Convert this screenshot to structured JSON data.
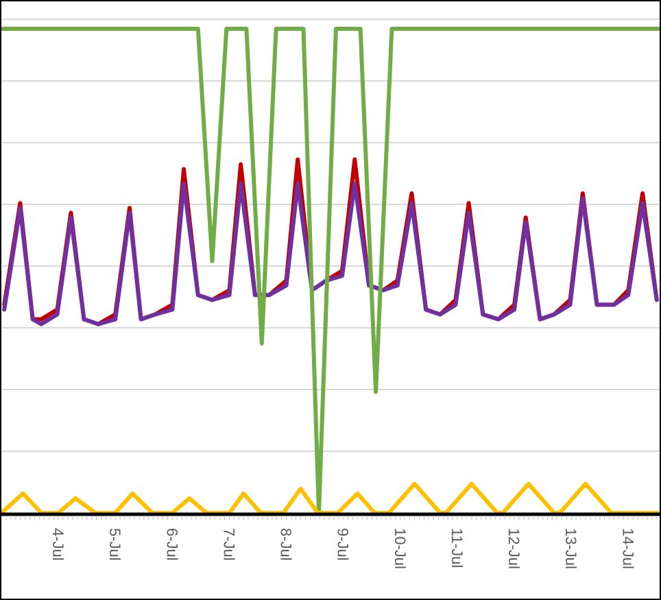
{
  "chart_data": {
    "type": "line",
    "title": "",
    "xlabel": "",
    "ylabel": "",
    "x_range_days": [
      3.0,
      14.55
    ],
    "x_ticks": [
      {
        "day": 4,
        "label": "4-Jul"
      },
      {
        "day": 5,
        "label": "5-Jul"
      },
      {
        "day": 6,
        "label": "6-Jul"
      },
      {
        "day": 7,
        "label": "7-Jul"
      },
      {
        "day": 8,
        "label": "8-Jul"
      },
      {
        "day": 9,
        "label": "9-Jul"
      },
      {
        "day": 10,
        "label": "10-Jul"
      },
      {
        "day": 11,
        "label": "11-Jul"
      },
      {
        "day": 12,
        "label": "12-Jul"
      },
      {
        "day": 13,
        "label": "13-Jul"
      },
      {
        "day": 14,
        "label": "14-Jul"
      }
    ],
    "grid": true,
    "y_axis_labels_visible": false,
    "legend": "none",
    "series": [
      {
        "color": "#c00000",
        "points": [
          [
            3.05,
            0.43
          ],
          [
            3.33,
            0.64
          ],
          [
            3.55,
            0.4
          ],
          [
            3.7,
            0.4
          ],
          [
            3.98,
            0.42
          ],
          [
            4.22,
            0.62
          ],
          [
            4.45,
            0.4
          ],
          [
            4.7,
            0.39
          ],
          [
            5.0,
            0.41
          ],
          [
            5.25,
            0.63
          ],
          [
            5.45,
            0.4
          ],
          [
            5.7,
            0.41
          ],
          [
            6.0,
            0.43
          ],
          [
            6.2,
            0.71
          ],
          [
            6.45,
            0.45
          ],
          [
            6.7,
            0.44
          ],
          [
            7.0,
            0.46
          ],
          [
            7.2,
            0.72
          ],
          [
            7.45,
            0.45
          ],
          [
            7.7,
            0.45
          ],
          [
            8.0,
            0.48
          ],
          [
            8.2,
            0.73
          ],
          [
            8.45,
            0.46
          ],
          [
            8.7,
            0.48
          ],
          [
            8.98,
            0.5
          ],
          [
            9.2,
            0.73
          ],
          [
            9.45,
            0.47
          ],
          [
            9.7,
            0.46
          ],
          [
            9.95,
            0.48
          ],
          [
            10.2,
            0.66
          ],
          [
            10.45,
            0.42
          ],
          [
            10.7,
            0.41
          ],
          [
            10.97,
            0.44
          ],
          [
            11.2,
            0.64
          ],
          [
            11.45,
            0.41
          ],
          [
            11.72,
            0.4
          ],
          [
            12.0,
            0.43
          ],
          [
            12.2,
            0.61
          ],
          [
            12.45,
            0.4
          ],
          [
            12.7,
            0.41
          ],
          [
            12.98,
            0.44
          ],
          [
            13.2,
            0.66
          ],
          [
            13.45,
            0.43
          ],
          [
            13.75,
            0.43
          ],
          [
            14.0,
            0.46
          ],
          [
            14.25,
            0.66
          ],
          [
            14.5,
            0.44
          ]
        ]
      },
      {
        "color": "#7030a0",
        "points": [
          [
            3.05,
            0.42
          ],
          [
            3.33,
            0.63
          ],
          [
            3.55,
            0.4
          ],
          [
            3.7,
            0.39
          ],
          [
            3.98,
            0.41
          ],
          [
            4.22,
            0.61
          ],
          [
            4.45,
            0.4
          ],
          [
            4.7,
            0.39
          ],
          [
            5.0,
            0.4
          ],
          [
            5.25,
            0.62
          ],
          [
            5.45,
            0.4
          ],
          [
            5.7,
            0.41
          ],
          [
            6.0,
            0.42
          ],
          [
            6.2,
            0.68
          ],
          [
            6.45,
            0.45
          ],
          [
            6.7,
            0.44
          ],
          [
            7.0,
            0.45
          ],
          [
            7.2,
            0.68
          ],
          [
            7.45,
            0.45
          ],
          [
            7.7,
            0.45
          ],
          [
            8.0,
            0.47
          ],
          [
            8.2,
            0.68
          ],
          [
            8.45,
            0.46
          ],
          [
            8.7,
            0.48
          ],
          [
            8.98,
            0.49
          ],
          [
            9.2,
            0.68
          ],
          [
            9.45,
            0.47
          ],
          [
            9.7,
            0.46
          ],
          [
            9.95,
            0.47
          ],
          [
            10.2,
            0.64
          ],
          [
            10.45,
            0.42
          ],
          [
            10.7,
            0.41
          ],
          [
            10.97,
            0.43
          ],
          [
            11.2,
            0.62
          ],
          [
            11.45,
            0.41
          ],
          [
            11.72,
            0.4
          ],
          [
            12.0,
            0.42
          ],
          [
            12.2,
            0.6
          ],
          [
            12.45,
            0.4
          ],
          [
            12.7,
            0.41
          ],
          [
            12.98,
            0.43
          ],
          [
            13.2,
            0.65
          ],
          [
            13.45,
            0.43
          ],
          [
            13.75,
            0.43
          ],
          [
            14.0,
            0.45
          ],
          [
            14.25,
            0.64
          ],
          [
            14.5,
            0.44
          ]
        ]
      },
      {
        "color": "#70ad47",
        "points": [
          [
            3.0,
            1.0
          ],
          [
            6.45,
            1.0
          ],
          [
            6.7,
            0.52
          ],
          [
            6.95,
            1.0
          ],
          [
            7.3,
            1.0
          ],
          [
            7.57,
            0.35
          ],
          [
            7.82,
            1.0
          ],
          [
            8.3,
            1.0
          ],
          [
            8.57,
            0.0
          ],
          [
            8.87,
            1.0
          ],
          [
            9.3,
            1.0
          ],
          [
            9.57,
            0.25
          ],
          [
            9.85,
            1.0
          ],
          [
            14.55,
            1.0
          ]
        ]
      },
      {
        "color": "#ffc000",
        "points": [
          [
            3.0,
            0.0
          ],
          [
            3.38,
            0.04
          ],
          [
            3.7,
            0.0
          ],
          [
            4.0,
            0.0
          ],
          [
            4.3,
            0.03
          ],
          [
            4.65,
            0.0
          ],
          [
            5.0,
            0.0
          ],
          [
            5.3,
            0.04
          ],
          [
            5.65,
            0.0
          ],
          [
            6.0,
            0.0
          ],
          [
            6.3,
            0.03
          ],
          [
            6.6,
            0.0
          ],
          [
            7.0,
            0.0
          ],
          [
            7.25,
            0.04
          ],
          [
            7.55,
            0.0
          ],
          [
            7.95,
            0.0
          ],
          [
            8.25,
            0.05
          ],
          [
            8.55,
            0.0
          ],
          [
            8.9,
            0.0
          ],
          [
            9.25,
            0.04
          ],
          [
            9.55,
            0.0
          ],
          [
            9.8,
            0.0
          ],
          [
            10.25,
            0.06
          ],
          [
            10.7,
            0.0
          ],
          [
            10.8,
            0.0
          ],
          [
            11.25,
            0.06
          ],
          [
            11.7,
            0.0
          ],
          [
            11.8,
            0.0
          ],
          [
            12.25,
            0.06
          ],
          [
            12.7,
            0.0
          ],
          [
            12.8,
            0.0
          ],
          [
            13.25,
            0.06
          ],
          [
            13.7,
            0.0
          ],
          [
            14.55,
            0.0
          ]
        ]
      }
    ]
  }
}
